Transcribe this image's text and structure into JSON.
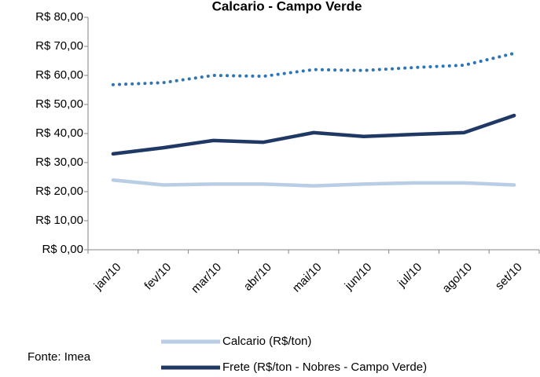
{
  "chart_data": {
    "type": "line",
    "title": "Calcario - Campo Verde",
    "categories": [
      "jan/10",
      "fev/10",
      "mar/10",
      "abr/10",
      "mai/10",
      "jun/10",
      "jul/10",
      "ago/10",
      "set/10"
    ],
    "series": [
      {
        "name": "Calcario (R$/ton)",
        "color": "#b9cde5",
        "style": "solid",
        "values": [
          24.0,
          22.3,
          22.6,
          22.6,
          22.0,
          22.6,
          23.0,
          23.0,
          22.3
        ]
      },
      {
        "name": "Frete (R$/ton - Nobres - Campo Verde)",
        "color": "#1f3864",
        "style": "solid",
        "values": [
          33.0,
          35.1,
          37.6,
          37.0,
          40.3,
          39.0,
          39.7,
          40.3,
          46.2
        ]
      },
      {
        "color": "#2e75b6",
        "style": "dotted",
        "values": [
          56.8,
          57.5,
          60.0,
          59.7,
          62.0,
          61.7,
          62.7,
          63.5,
          67.6
        ]
      }
    ],
    "ylim": [
      0,
      80
    ],
    "yticks": [
      {
        "value": 0,
        "label": "R$ 0,00"
      },
      {
        "value": 10,
        "label": "R$ 10,00"
      },
      {
        "value": 20,
        "label": "R$ 20,00"
      },
      {
        "value": 30,
        "label": "R$ 30,00"
      },
      {
        "value": 40,
        "label": "R$ 40,00"
      },
      {
        "value": 50,
        "label": "R$ 50,00"
      },
      {
        "value": 60,
        "label": "R$ 60,00"
      },
      {
        "value": 70,
        "label": "R$ 70,00"
      },
      {
        "value": 80,
        "label": "R$ 80,00"
      }
    ],
    "source": "Fonte: Imea"
  }
}
